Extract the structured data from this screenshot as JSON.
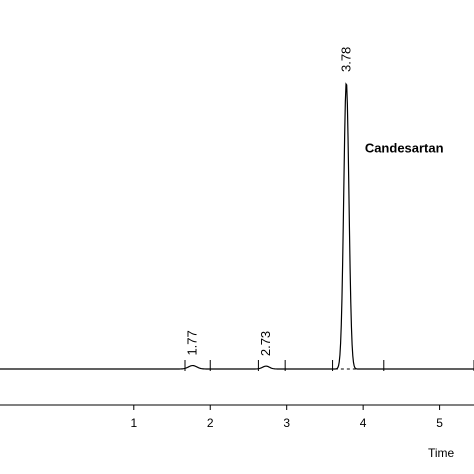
{
  "chart_data": {
    "type": "line",
    "title": "",
    "xlabel": "Time",
    "ylabel": "",
    "xlim": [
      -0.75,
      5.45
    ],
    "ylim": [
      0,
      1
    ],
    "x_ticks": [
      1,
      2,
      3,
      4,
      5
    ],
    "x_tick_labels": [
      "1",
      "2",
      "3",
      "4",
      "5"
    ],
    "grid": false,
    "series": [
      {
        "peaks": [
          {
            "time": 1.77,
            "height": 0.012,
            "width": 0.12
          },
          {
            "time": 2.73,
            "height": 0.01,
            "width": 0.1
          },
          {
            "time": 3.78,
            "height": 1.0,
            "width": 0.075
          }
        ]
      }
    ],
    "peak_labels": [
      "1.77",
      "2.73",
      "3.78"
    ],
    "annotations": [
      {
        "text": "Candesartan",
        "x": 4.55,
        "y": 0.79
      }
    ]
  }
}
